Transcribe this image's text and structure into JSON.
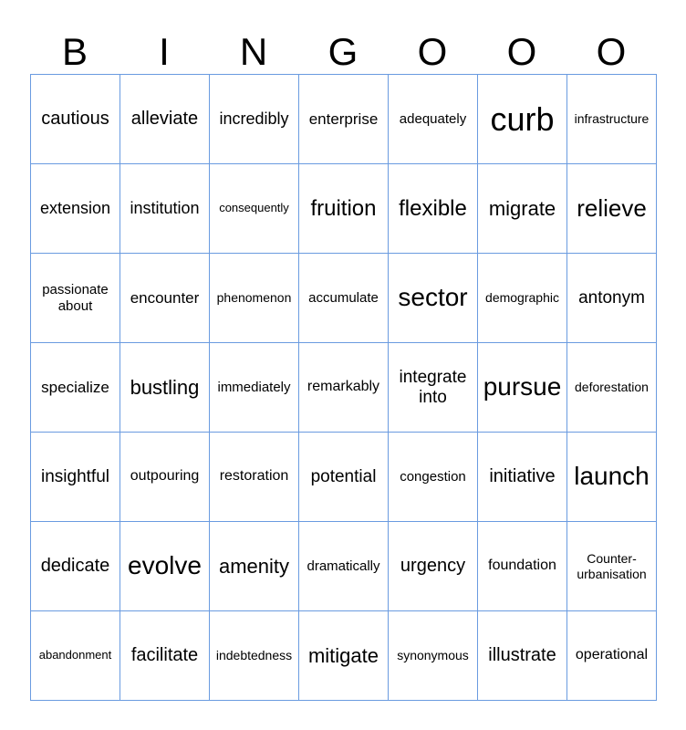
{
  "header": [
    "B",
    "I",
    "N",
    "G",
    "O",
    "O",
    "O"
  ],
  "cells": [
    [
      "cautious",
      "alleviate",
      "incredibly",
      "enterprise",
      "adequately",
      "curb",
      "infrastructure"
    ],
    [
      "extension",
      "institution",
      "consequently",
      "fruition",
      "flexible",
      "migrate",
      "relieve"
    ],
    [
      "passionate about",
      "encounter",
      "phenomenon",
      "accumulate",
      "sector",
      "demographic",
      "antonym"
    ],
    [
      "specialize",
      "bustling",
      "immediately",
      "remarkably",
      "integrate into",
      "pursue",
      "deforestation"
    ],
    [
      "insightful",
      "outpouring",
      "restoration",
      "potential",
      "congestion",
      "initiative",
      "launch"
    ],
    [
      "dedicate",
      "evolve",
      "amenity",
      "dramatically",
      "urgency",
      "foundation",
      "Counter-urbanisation"
    ],
    [
      "abandonment",
      "facilitate",
      "indebtedness",
      "mitigate",
      "synonymous",
      "illustrate",
      "operational"
    ]
  ],
  "colors": {
    "grid": "#6a9be0",
    "text": "#000000"
  }
}
